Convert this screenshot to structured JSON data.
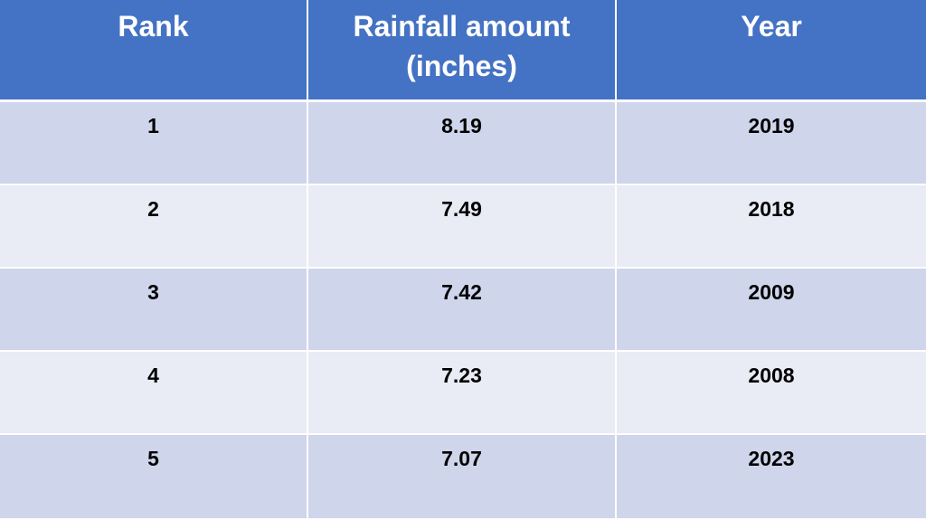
{
  "table": {
    "headers": [
      "Rank",
      "Rainfall amount (inches)",
      "Year"
    ],
    "header_lines": {
      "rank": "Rank",
      "rainfall_line1": "Rainfall amount",
      "rainfall_line2": "(inches)",
      "year": "Year"
    },
    "rows": [
      {
        "rank": "1",
        "rainfall": "8.19",
        "year": "2019"
      },
      {
        "rank": "2",
        "rainfall": "7.49",
        "year": "2018"
      },
      {
        "rank": "3",
        "rainfall": "7.42",
        "year": "2009"
      },
      {
        "rank": "4",
        "rainfall": "7.23",
        "year": "2008"
      },
      {
        "rank": "5",
        "rainfall": "7.07",
        "year": "2023"
      }
    ],
    "colors": {
      "header_bg": "#4472c4",
      "row_odd_bg": "#cfd5ea",
      "row_even_bg": "#e9ebf5"
    }
  }
}
